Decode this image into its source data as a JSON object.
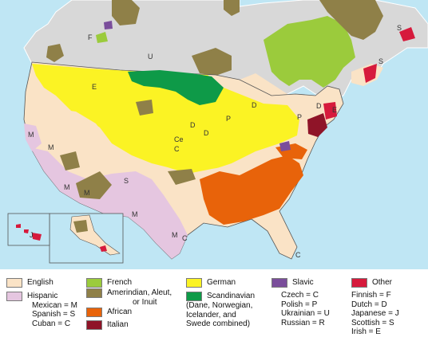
{
  "colors": {
    "water": "#bfe6f4",
    "land_outline": "#ffffff",
    "other_land": "#d8d8d8",
    "english": "#fae3c6",
    "hispanic": "#e5c6e0",
    "french": "#9bcb3c",
    "amerindian": "#8f8048",
    "african": "#e8630a",
    "italian": "#8f1428",
    "german": "#fbf324",
    "scandinavian": "#0e9a48",
    "slavic": "#7a4e9b",
    "other": "#d61a3c",
    "borders": "#555555"
  },
  "map_labels": {
    "f_canada": "F",
    "u_canada": "U",
    "s_newfoundland": "S",
    "s_nova_scotia": "S",
    "e_montana": "E",
    "m_washington": "M",
    "m_oregon": "M",
    "m_california": "M",
    "m_arizona": "M",
    "m_texas": "M",
    "m_newmexico": "M",
    "s_newmexico": "S",
    "c_texas": "C",
    "c_kansas": "Ce",
    "c_nebraska": "C",
    "d_wisconsin": "D",
    "d_iowa": "D",
    "p_michigan": "P",
    "d_michigan": "D",
    "c_florida": "C",
    "j_hawaii": "J",
    "p_penn": "P",
    "d_penn": "D",
    "e_newengland": "E"
  },
  "legend": {
    "english": "English",
    "hispanic": "Hispanic",
    "hispanic_sub": [
      "Mexican = M",
      "Spanish = S",
      "Cuban = C"
    ],
    "french": "French",
    "amerindian": [
      "Amerindian, Aleut,",
      "or Inuit"
    ],
    "african": "African",
    "italian": "Italian",
    "german": "German",
    "scandinavian": "Scandinavian",
    "scandinavian_sub": [
      "(Dane, Norwegian,",
      "Icelander, and",
      "Swede combined)"
    ],
    "slavic": "Slavic",
    "slavic_sub": [
      "Czech = C",
      "Polish = P",
      "Ukrainian = U",
      "Russian = R"
    ],
    "other": "Other",
    "other_sub": [
      "Finnish = F",
      "Dutch = D",
      "Japanese = J",
      "Scottish = S",
      "Irish = E"
    ]
  }
}
